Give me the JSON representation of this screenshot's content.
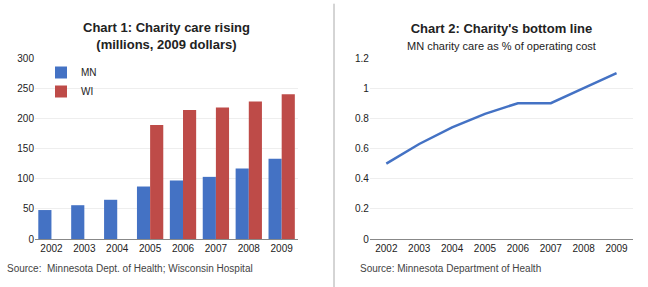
{
  "chart_data": [
    {
      "type": "bar",
      "title": "Chart 1: Charity care rising",
      "subtitle": "(millions, 2009 dollars)",
      "categories": [
        "2002",
        "2003",
        "2004",
        "2005",
        "2006",
        "2007",
        "2008",
        "2009"
      ],
      "series": [
        {
          "name": "MN",
          "color": "#4472C4",
          "values": [
            48,
            56,
            65,
            87,
            97,
            103,
            117,
            133
          ]
        },
        {
          "name": "WI",
          "color": "#BE4B48",
          "values": [
            null,
            null,
            null,
            189,
            214,
            218,
            228,
            240
          ]
        }
      ],
      "ylim": [
        0,
        300
      ],
      "yticks": [
        0,
        50,
        100,
        150,
        200,
        250,
        300
      ],
      "grid": true,
      "legend": "upper left",
      "annotations": [
        "Source:  Minnesota Dept. of Health; Wisconsin Hospital"
      ]
    },
    {
      "type": "line",
      "title": "Chart 2: Charity's bottom line",
      "subtitle": "MN charity care as % of operating cost",
      "x": [
        2002,
        2003,
        2004,
        2005,
        2006,
        2007,
        2008,
        2009
      ],
      "values": [
        0.5,
        0.63,
        0.74,
        0.83,
        0.9,
        0.9,
        1.0,
        1.1
      ],
      "color": "#4472C4",
      "xlim": [
        2001.5,
        2009.5
      ],
      "xticks": [
        2002,
        2003,
        2004,
        2005,
        2006,
        2007,
        2008,
        2009
      ],
      "ylim": [
        0,
        1.2
      ],
      "yticks": [
        0,
        0.2,
        0.4,
        0.6,
        0.8,
        1,
        1.2
      ],
      "grid": true,
      "annotations": [
        "Source: Minnesota Department of Health"
      ]
    }
  ]
}
